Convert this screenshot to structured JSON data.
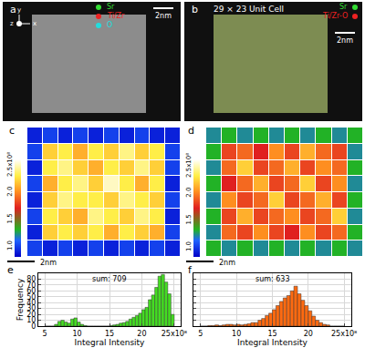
{
  "chart_data": [
    {
      "type": "image",
      "panel": "a",
      "legend": [
        {
          "name": "Sr",
          "color": "#33dd33"
        },
        {
          "name": "Ti/Zr",
          "color": "#ee2222"
        },
        {
          "name": "O",
          "color": "#22dddd"
        }
      ],
      "axes_labels": [
        "y",
        "z",
        "x"
      ],
      "scale_bar": "2nm"
    },
    {
      "type": "image",
      "panel": "b",
      "title": "29 × 23 Unit Cell",
      "legend": [
        {
          "name": "Sr",
          "color": "#33dd33"
        },
        {
          "name": "Ti/Zr-O",
          "color": "#ee2222"
        }
      ],
      "scale_bar": "2nm"
    },
    {
      "type": "heatmap",
      "panel": "c",
      "scale_bar": "2nm",
      "tick_labels": false,
      "zlim": [
        0.8,
        2.6
      ],
      "zticks": [
        {
          "value": 1,
          "label": "1.0"
        },
        {
          "value": 1.5,
          "label": "1.5"
        },
        {
          "value": 2,
          "label": "2.0"
        },
        {
          "value": 2.5,
          "label": "2.5x10⁸"
        }
      ],
      "z": [
        [
          0.9,
          1.0,
          0.9,
          1.0,
          0.9,
          1.0,
          0.9,
          1.0,
          0.9,
          0.9
        ],
        [
          1.0,
          2.2,
          2.3,
          2.1,
          2.3,
          2.2,
          2.4,
          2.2,
          2.3,
          1.0
        ],
        [
          0.9,
          2.3,
          2.4,
          2.2,
          2.1,
          2.3,
          2.2,
          2.4,
          2.2,
          1.0
        ],
        [
          1.0,
          2.1,
          2.3,
          2.4,
          2.2,
          2.5,
          2.3,
          2.1,
          2.3,
          0.9
        ],
        [
          0.9,
          2.2,
          2.4,
          2.3,
          2.3,
          2.2,
          2.4,
          2.3,
          2.2,
          1.0
        ],
        [
          1.0,
          2.3,
          2.2,
          2.1,
          2.4,
          2.3,
          2.2,
          2.4,
          2.3,
          0.9
        ],
        [
          0.9,
          2.2,
          2.3,
          2.2,
          2.3,
          2.1,
          2.3,
          2.2,
          2.1,
          1.0
        ],
        [
          1.0,
          0.9,
          1.0,
          0.9,
          1.0,
          0.9,
          1.0,
          0.9,
          1.0,
          0.9
        ]
      ]
    },
    {
      "type": "heatmap",
      "panel": "d",
      "scale_bar": "2nm",
      "tick_labels": false,
      "zlim": [
        0.8,
        2.6
      ],
      "zticks": [
        {
          "value": 1,
          "label": "1.0"
        },
        {
          "value": 1.5,
          "label": "1.5"
        },
        {
          "value": 2,
          "label": "2.0"
        },
        {
          "value": 2.5,
          "label": "2.5x10⁸"
        }
      ],
      "z": [
        [
          1.2,
          1.3,
          1.2,
          1.3,
          1.2,
          1.3,
          1.2,
          1.3,
          1.2,
          1.3
        ],
        [
          1.3,
          1.8,
          1.9,
          1.7,
          2.0,
          1.8,
          2.1,
          1.9,
          1.8,
          1.2
        ],
        [
          1.2,
          1.9,
          2.2,
          1.8,
          1.9,
          2.1,
          1.8,
          2.0,
          1.9,
          1.3
        ],
        [
          1.3,
          1.7,
          1.9,
          2.1,
          1.8,
          1.9,
          2.2,
          1.8,
          2.0,
          1.2
        ],
        [
          1.2,
          2.0,
          1.8,
          1.9,
          2.2,
          1.8,
          1.9,
          2.1,
          1.8,
          1.3
        ],
        [
          1.3,
          1.8,
          2.1,
          1.8,
          1.9,
          2.0,
          1.8,
          1.9,
          2.2,
          1.2
        ],
        [
          1.2,
          1.9,
          1.8,
          2.0,
          1.8,
          1.7,
          2.0,
          1.8,
          1.9,
          1.3
        ],
        [
          1.3,
          1.2,
          1.3,
          1.2,
          1.3,
          1.2,
          1.3,
          1.2,
          1.3,
          1.2
        ]
      ]
    },
    {
      "type": "histogram",
      "panel": "e",
      "color": "#44dd22",
      "annotation": "sum: 709",
      "x_label": "Integral Intensity",
      "y_label": "Frequency",
      "grid": true,
      "bins": [
        5,
        5.5,
        6,
        6.5,
        7,
        7.5,
        8,
        8.5,
        9,
        9.5,
        10,
        10.5,
        11,
        11.5,
        12,
        12.5,
        13,
        13.5,
        14,
        14.5,
        15,
        15.5,
        16,
        16.5,
        17,
        17.5,
        18,
        18.5,
        19,
        19.5,
        20,
        20.5,
        21,
        21.5,
        22,
        22.5,
        23,
        23.5,
        24,
        24.5,
        25
      ],
      "counts": [
        0,
        0,
        0,
        3,
        8,
        10,
        7,
        5,
        12,
        14,
        7,
        3,
        1,
        0,
        0,
        0,
        0,
        0,
        0,
        0,
        1,
        2,
        3,
        5,
        6,
        8,
        12,
        15,
        18,
        22,
        28,
        32,
        45,
        53,
        66,
        85,
        88,
        75,
        55,
        20
      ],
      "xlim": [
        4,
        26
      ],
      "xticks": [
        5,
        10,
        15,
        20,
        {
          "value": 25,
          "label": "25x10⁸"
        }
      ],
      "ylim": [
        0,
        90
      ],
      "yticks": [
        0,
        10,
        20,
        30,
        40,
        50,
        60,
        70,
        80
      ]
    },
    {
      "type": "histogram",
      "panel": "f",
      "color": "#ff6a10",
      "annotation": "sum: 633",
      "x_label": "Integral Intensity",
      "grid": true,
      "tick_labels": "x",
      "bins": [
        5,
        5.5,
        6,
        6.5,
        7,
        7.5,
        8,
        8.5,
        9,
        9.5,
        10,
        10.5,
        11,
        11.5,
        12,
        12.5,
        13,
        13.5,
        14,
        14.5,
        15,
        15.5,
        16,
        16.5,
        17,
        17.5,
        18,
        18.5,
        19,
        19.5,
        20,
        20.5,
        21,
        21.5,
        22,
        22.5,
        23,
        23.5,
        24,
        24.5,
        25
      ],
      "counts": [
        0,
        0,
        1,
        1,
        2,
        1,
        2,
        3,
        3,
        2,
        3,
        2,
        3,
        4,
        6,
        6,
        10,
        13,
        18,
        22,
        28,
        35,
        42,
        48,
        52,
        60,
        68,
        55,
        44,
        35,
        26,
        17,
        10,
        6,
        3,
        2,
        0,
        0,
        0,
        0
      ],
      "xlim": [
        4,
        26
      ],
      "xticks": [
        5,
        10,
        15,
        20,
        {
          "value": 25,
          "label": "25x10⁸"
        }
      ],
      "ylim": [
        0,
        90
      ],
      "yticks": [
        0,
        10,
        20,
        30,
        40,
        50,
        60,
        70,
        80
      ]
    }
  ]
}
